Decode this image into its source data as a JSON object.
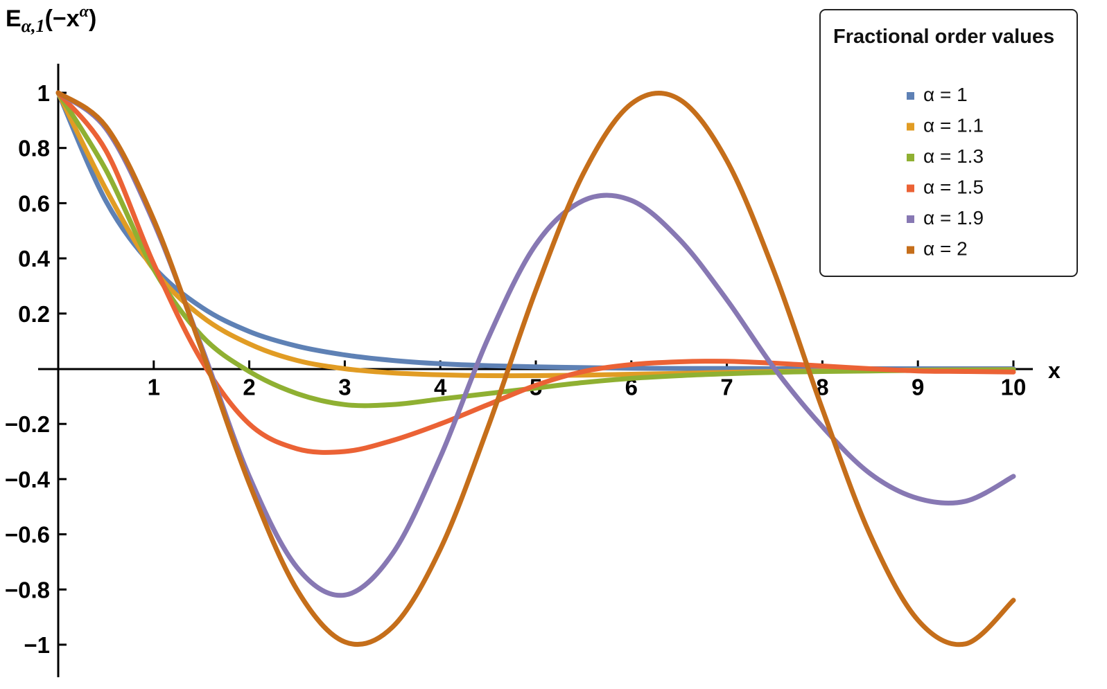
{
  "chart_data": {
    "type": "line",
    "ylabel": {
      "base": "E",
      "subscript": "α,1",
      "arg_prefix": "(−x",
      "superscript": "α",
      "arg_suffix": ")"
    },
    "xlabel": "x",
    "xlim": [
      0,
      10
    ],
    "ylim": [
      -1.1,
      1.1
    ],
    "xticks": [
      1,
      2,
      3,
      4,
      5,
      6,
      7,
      8,
      9,
      10
    ],
    "xtick_labels": [
      "1",
      "2",
      "3",
      "4",
      "5",
      "6",
      "7",
      "8",
      "9",
      "10"
    ],
    "yticks": [
      1,
      0.8,
      0.6,
      0.4,
      0.2,
      -0.2,
      -0.4,
      -0.6,
      -0.8,
      -1
    ],
    "ytick_labels": [
      "1",
      "0.8",
      "0.6",
      "0.4",
      "0.2",
      "−0.2",
      "−0.4",
      "−0.6",
      "−0.8",
      "−1"
    ],
    "grid": false,
    "legend": {
      "title": "Fractional order values",
      "placement": "top-right"
    },
    "x": [
      0,
      0.5,
      1,
      1.5,
      2,
      2.5,
      3,
      3.5,
      4,
      4.5,
      5,
      5.5,
      6,
      6.5,
      7,
      7.5,
      8,
      8.5,
      9,
      9.5,
      10
    ],
    "series": [
      {
        "name": "α = 1",
        "color": "#5e81b5",
        "values": [
          1,
          0.607,
          0.368,
          0.223,
          0.135,
          0.082,
          0.05,
          0.03,
          0.018,
          0.011,
          0.007,
          0.004,
          0.002,
          0.001,
          0.001,
          0.0,
          0.0,
          0.0,
          0.0,
          0.0,
          0.0
        ]
      },
      {
        "name": "α = 1.1",
        "color": "#e19c24",
        "values": [
          1,
          0.65,
          0.36,
          0.19,
          0.09,
          0.03,
          0.0,
          -0.015,
          -0.022,
          -0.025,
          -0.025,
          -0.023,
          -0.02,
          -0.017,
          -0.013,
          -0.01,
          -0.008,
          -0.006,
          -0.005,
          -0.004,
          -0.003
        ]
      },
      {
        "name": "α = 1.3",
        "color": "#8fb032",
        "values": [
          1,
          0.72,
          0.36,
          0.12,
          -0.01,
          -0.09,
          -0.13,
          -0.13,
          -0.11,
          -0.09,
          -0.07,
          -0.05,
          -0.035,
          -0.025,
          -0.018,
          -0.013,
          -0.01,
          -0.008,
          -0.006,
          -0.005,
          -0.004
        ]
      },
      {
        "name": "α = 1.5",
        "color": "#eb6235",
        "values": [
          1,
          0.79,
          0.38,
          0.03,
          -0.2,
          -0.29,
          -0.3,
          -0.26,
          -0.2,
          -0.13,
          -0.06,
          -0.01,
          0.015,
          0.025,
          0.027,
          0.02,
          0.01,
          0.0,
          -0.008,
          -0.01,
          -0.012
        ]
      },
      {
        "name": "α = 1.9",
        "color": "#8778b3",
        "values": [
          1,
          0.87,
          0.53,
          0.08,
          -0.39,
          -0.72,
          -0.82,
          -0.67,
          -0.32,
          0.11,
          0.45,
          0.61,
          0.61,
          0.47,
          0.25,
          0.0,
          -0.21,
          -0.38,
          -0.47,
          -0.48,
          -0.39
        ]
      },
      {
        "name": "α = 2",
        "color": "#c56e1a",
        "values": [
          1,
          0.878,
          0.54,
          0.071,
          -0.416,
          -0.801,
          -0.99,
          -0.936,
          -0.654,
          -0.211,
          0.284,
          0.709,
          0.96,
          0.977,
          0.754,
          0.347,
          -0.146,
          -0.602,
          -0.911,
          -0.997,
          -0.839
        ]
      }
    ]
  }
}
